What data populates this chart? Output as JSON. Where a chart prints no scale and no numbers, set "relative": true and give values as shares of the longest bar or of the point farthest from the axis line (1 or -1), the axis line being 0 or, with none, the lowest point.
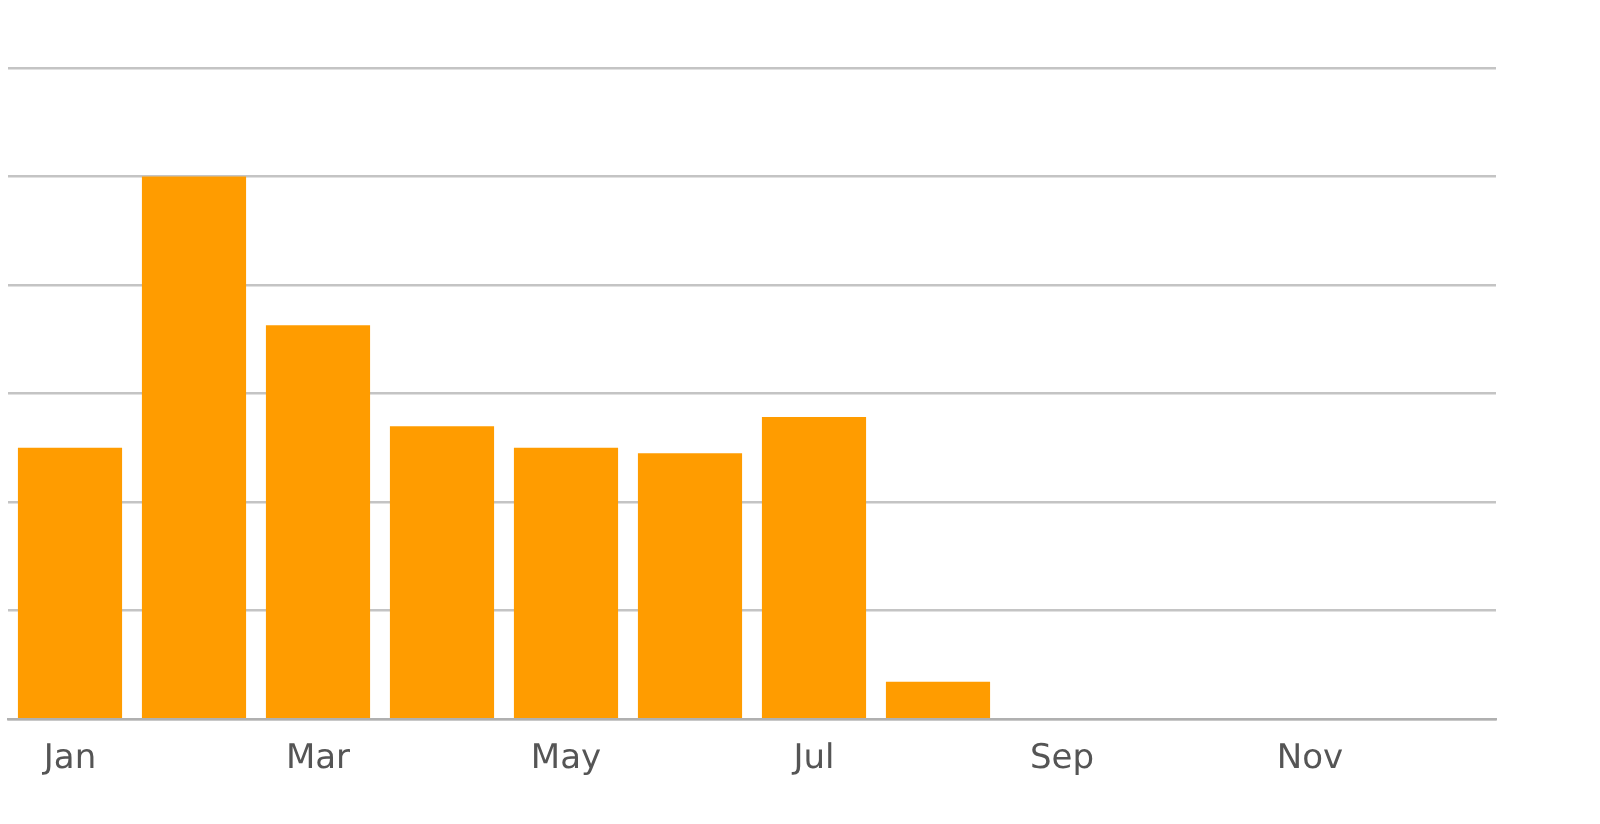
{
  "chart_data": {
    "type": "bar",
    "relative": true,
    "categories": [
      "Jan",
      null,
      "Mar",
      null,
      "May",
      null,
      "Jul",
      null,
      "Sep",
      null,
      "Nov",
      null
    ],
    "values": [
      0.5,
      1,
      0.726,
      0.54,
      0.5,
      0.49,
      0.557,
      0.069,
      null,
      null,
      null,
      null
    ],
    "color": "#ff9c00",
    "grid": "y",
    "tick_labels": "x"
  }
}
